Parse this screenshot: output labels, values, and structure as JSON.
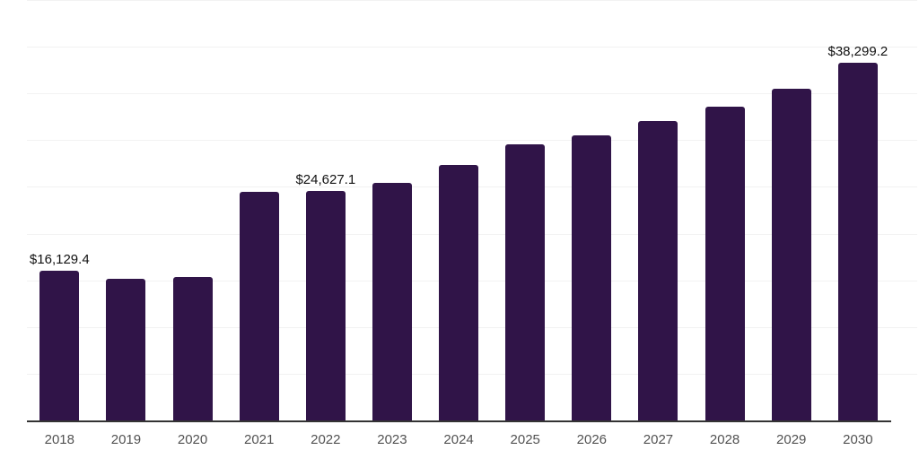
{
  "chart_data": {
    "type": "bar",
    "title": "",
    "xlabel": "",
    "ylabel": "",
    "categories": [
      "2018",
      "2019",
      "2020",
      "2021",
      "2022",
      "2023",
      "2024",
      "2025",
      "2026",
      "2027",
      "2028",
      "2029",
      "2030"
    ],
    "values": [
      16129.4,
      15200,
      15400,
      24500,
      24627.1,
      25500,
      27400,
      29600,
      30500,
      32100,
      33600,
      35500,
      38299.2
    ],
    "data_labels": {
      "2018": "$16,129.4",
      "2022": "$24,627.1",
      "2030": "$38,299.2"
    },
    "ylim": [
      0,
      45000
    ],
    "grid_interval": 5000,
    "grid": "horizontal-only",
    "legend": "none",
    "y_axis_tick_labels": "none",
    "colors": {
      "bar": "#301448",
      "gridline": "#f2f2f2",
      "axis_line": "#333333",
      "data_label": "#111111",
      "tick_label": "#525252",
      "background": "#ffffff"
    }
  }
}
